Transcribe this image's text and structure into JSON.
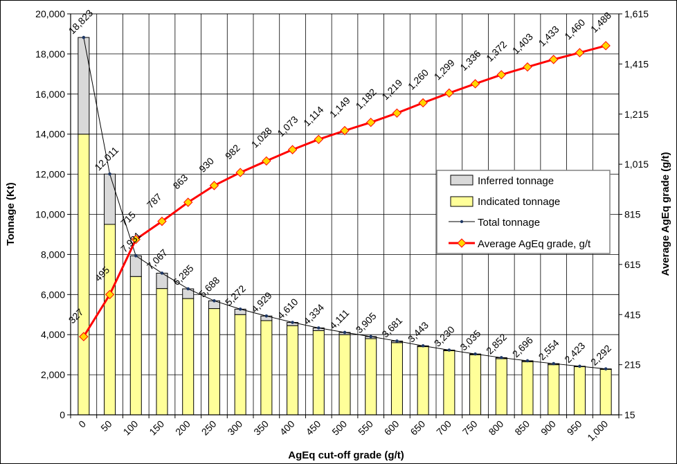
{
  "chart_data": {
    "type": "bar",
    "title": "",
    "xlabel": "AgEq cut-off grade (g/t)",
    "ylabel": "Tonnage (Kt)",
    "y2label": "Average AgEq grade (g/t)",
    "categories": [
      "0",
      "50",
      "100",
      "150",
      "200",
      "250",
      "300",
      "350",
      "400",
      "450",
      "500",
      "550",
      "600",
      "650",
      "700",
      "750",
      "800",
      "850",
      "900",
      "950",
      "1,000"
    ],
    "ylim": [
      0,
      20000
    ],
    "yticks": [
      "0",
      "2,000",
      "4,000",
      "6,000",
      "8,000",
      "10,000",
      "12,000",
      "14,000",
      "16,000",
      "18,000",
      "20,000"
    ],
    "y2lim": [
      15,
      1615
    ],
    "y2ticks": [
      "15",
      "215",
      "415",
      "615",
      "815",
      "1,015",
      "1,215",
      "1,415",
      "1,615"
    ],
    "grid": true,
    "legend_position": "right-center",
    "series": [
      {
        "name": "Inferred tonnage",
        "kind": "stacked-bar",
        "color": "#d9d9d9",
        "values": [
          4823,
          2511,
          1031,
          767,
          485,
          388,
          272,
          229,
          160,
          134,
          111,
          105,
          81,
          43,
          30,
          35,
          52,
          46,
          54,
          23,
          22
        ]
      },
      {
        "name": "Indicated tonnage",
        "kind": "stacked-bar",
        "color": "#ffff99",
        "values": [
          14000,
          9500,
          6900,
          6300,
          5800,
          5300,
          5000,
          4700,
          4450,
          4200,
          4000,
          3800,
          3600,
          3400,
          3200,
          3000,
          2800,
          2650,
          2500,
          2400,
          2270
        ]
      },
      {
        "name": "Total tonnage",
        "kind": "line",
        "color": "#000000",
        "marker_color": "#1f3864",
        "values": [
          18823,
          12011,
          7931,
          7067,
          6285,
          5688,
          5272,
          4929,
          4610,
          4334,
          4111,
          3905,
          3681,
          3443,
          3230,
          3035,
          2852,
          2696,
          2554,
          2423,
          2292
        ],
        "labels": [
          "18,823",
          "12,011",
          "7,931",
          "7,067",
          "6,285",
          "5,688",
          "5,272",
          "4,929",
          "4,610",
          "4,334",
          "4,111",
          "3,905",
          "3,681",
          "3,443",
          "3,230",
          "3,035",
          "2,852",
          "2,696",
          "2,554",
          "2,423",
          "2,292"
        ]
      },
      {
        "name": "Average AgEq grade, g/t",
        "kind": "line",
        "axis": "y2",
        "color": "#ff0000",
        "marker_color": "#ffd700",
        "values": [
          327,
          495,
          715,
          787,
          863,
          930,
          982,
          1028,
          1073,
          1114,
          1149,
          1182,
          1219,
          1260,
          1299,
          1336,
          1372,
          1403,
          1433,
          1460,
          1488
        ],
        "labels": [
          "327",
          "495",
          "715",
          "787",
          "863",
          "930",
          "982",
          "1,028",
          "1,073",
          "1,114",
          "1,149",
          "1,182",
          "1,219",
          "1,260",
          "1,299",
          "1,336",
          "1,372",
          "1,403",
          "1,433",
          "1,460",
          "1,488"
        ]
      }
    ]
  }
}
